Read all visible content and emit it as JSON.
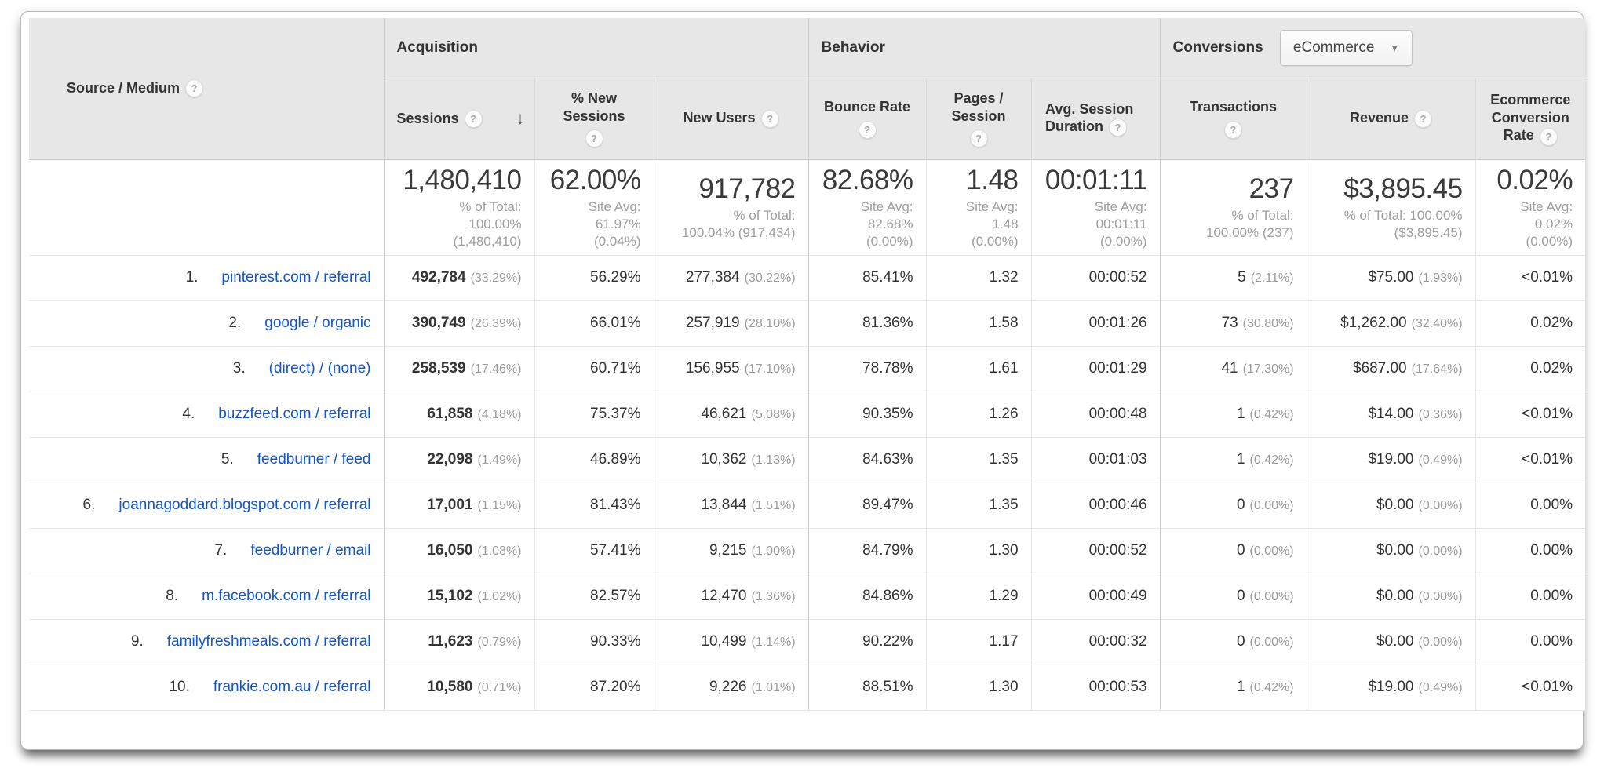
{
  "icons": {
    "help": "?",
    "sort_desc": "↓",
    "caret": "▼"
  },
  "colors": {
    "header_bg": "#e7e7e7",
    "link": "#1155cc",
    "sorted_col_bg": "#f5f5f5",
    "pct_text": "#9b9b9b"
  },
  "table": {
    "primary_column": {
      "label": "Source / Medium"
    },
    "groups": [
      {
        "label": "Acquisition"
      },
      {
        "label": "Behavior"
      },
      {
        "label": "Conversions",
        "dropdown_value": "eCommerce"
      }
    ],
    "columns": [
      {
        "label": "Sessions",
        "sorted": "desc"
      },
      {
        "label": "% New Sessions"
      },
      {
        "label": "New Users"
      },
      {
        "label": "Bounce Rate"
      },
      {
        "label": "Pages / Session"
      },
      {
        "label": "Avg. Session Duration"
      },
      {
        "label": "Transactions"
      },
      {
        "label": "Revenue"
      },
      {
        "label": "Ecommerce Conversion Rate"
      }
    ],
    "totals": [
      {
        "main": "1,480,410",
        "sub": "% of Total:\n100.00%\n(1,480,410)"
      },
      {
        "main": "62.00%",
        "sub": "Site Avg:\n61.97%\n(0.04%)"
      },
      {
        "main": "917,782",
        "sub": "% of Total:\n100.04% (917,434)"
      },
      {
        "main": "82.68%",
        "sub": "Site Avg:\n82.68%\n(0.00%)"
      },
      {
        "main": "1.48",
        "sub": "Site Avg:\n1.48\n(0.00%)"
      },
      {
        "main": "00:01:11",
        "sub": "Site Avg:\n00:01:11\n(0.00%)"
      },
      {
        "main": "237",
        "sub": "% of Total:\n100.00% (237)"
      },
      {
        "main": "$3,895.45",
        "sub": "% of Total: 100.00%\n($3,895.45)"
      },
      {
        "main": "0.02%",
        "sub": "Site Avg:\n0.02%\n(0.00%)"
      }
    ],
    "rows": [
      {
        "rank": "1.",
        "source": "pinterest.com / referral",
        "cells": [
          {
            "v": "492,784",
            "pct": "(33.29%)"
          },
          {
            "v": "56.29%"
          },
          {
            "v": "277,384",
            "pct": "(30.22%)"
          },
          {
            "v": "85.41%"
          },
          {
            "v": "1.32"
          },
          {
            "v": "00:00:52"
          },
          {
            "v": "5",
            "pct": "(2.11%)"
          },
          {
            "v": "$75.00",
            "pct": "(1.93%)"
          },
          {
            "v": "<0.01%"
          }
        ]
      },
      {
        "rank": "2.",
        "source": "google / organic",
        "cells": [
          {
            "v": "390,749",
            "pct": "(26.39%)"
          },
          {
            "v": "66.01%"
          },
          {
            "v": "257,919",
            "pct": "(28.10%)"
          },
          {
            "v": "81.36%"
          },
          {
            "v": "1.58"
          },
          {
            "v": "00:01:26"
          },
          {
            "v": "73",
            "pct": "(30.80%)"
          },
          {
            "v": "$1,262.00",
            "pct": "(32.40%)"
          },
          {
            "v": "0.02%"
          }
        ]
      },
      {
        "rank": "3.",
        "source": "(direct) / (none)",
        "cells": [
          {
            "v": "258,539",
            "pct": "(17.46%)"
          },
          {
            "v": "60.71%"
          },
          {
            "v": "156,955",
            "pct": "(17.10%)"
          },
          {
            "v": "78.78%"
          },
          {
            "v": "1.61"
          },
          {
            "v": "00:01:29"
          },
          {
            "v": "41",
            "pct": "(17.30%)"
          },
          {
            "v": "$687.00",
            "pct": "(17.64%)"
          },
          {
            "v": "0.02%"
          }
        ]
      },
      {
        "rank": "4.",
        "source": "buzzfeed.com / referral",
        "cells": [
          {
            "v": "61,858",
            "pct": "(4.18%)"
          },
          {
            "v": "75.37%"
          },
          {
            "v": "46,621",
            "pct": "(5.08%)"
          },
          {
            "v": "90.35%"
          },
          {
            "v": "1.26"
          },
          {
            "v": "00:00:48"
          },
          {
            "v": "1",
            "pct": "(0.42%)"
          },
          {
            "v": "$14.00",
            "pct": "(0.36%)"
          },
          {
            "v": "<0.01%"
          }
        ]
      },
      {
        "rank": "5.",
        "source": "feedburner / feed",
        "cells": [
          {
            "v": "22,098",
            "pct": "(1.49%)"
          },
          {
            "v": "46.89%"
          },
          {
            "v": "10,362",
            "pct": "(1.13%)"
          },
          {
            "v": "84.63%"
          },
          {
            "v": "1.35"
          },
          {
            "v": "00:01:03"
          },
          {
            "v": "1",
            "pct": "(0.42%)"
          },
          {
            "v": "$19.00",
            "pct": "(0.49%)"
          },
          {
            "v": "<0.01%"
          }
        ]
      },
      {
        "rank": "6.",
        "source": "joannagoddard.blogspot.com / referral",
        "cells": [
          {
            "v": "17,001",
            "pct": "(1.15%)"
          },
          {
            "v": "81.43%"
          },
          {
            "v": "13,844",
            "pct": "(1.51%)"
          },
          {
            "v": "89.47%"
          },
          {
            "v": "1.35"
          },
          {
            "v": "00:00:46"
          },
          {
            "v": "0",
            "pct": "(0.00%)"
          },
          {
            "v": "$0.00",
            "pct": "(0.00%)"
          },
          {
            "v": "0.00%"
          }
        ]
      },
      {
        "rank": "7.",
        "source": "feedburner / email",
        "cells": [
          {
            "v": "16,050",
            "pct": "(1.08%)"
          },
          {
            "v": "57.41%"
          },
          {
            "v": "9,215",
            "pct": "(1.00%)"
          },
          {
            "v": "84.79%"
          },
          {
            "v": "1.30"
          },
          {
            "v": "00:00:52"
          },
          {
            "v": "0",
            "pct": "(0.00%)"
          },
          {
            "v": "$0.00",
            "pct": "(0.00%)"
          },
          {
            "v": "0.00%"
          }
        ]
      },
      {
        "rank": "8.",
        "source": "m.facebook.com / referral",
        "cells": [
          {
            "v": "15,102",
            "pct": "(1.02%)"
          },
          {
            "v": "82.57%"
          },
          {
            "v": "12,470",
            "pct": "(1.36%)"
          },
          {
            "v": "84.86%"
          },
          {
            "v": "1.29"
          },
          {
            "v": "00:00:49"
          },
          {
            "v": "0",
            "pct": "(0.00%)"
          },
          {
            "v": "$0.00",
            "pct": "(0.00%)"
          },
          {
            "v": "0.00%"
          }
        ]
      },
      {
        "rank": "9.",
        "source": "familyfreshmeals.com / referral",
        "cells": [
          {
            "v": "11,623",
            "pct": "(0.79%)"
          },
          {
            "v": "90.33%"
          },
          {
            "v": "10,499",
            "pct": "(1.14%)"
          },
          {
            "v": "90.22%"
          },
          {
            "v": "1.17"
          },
          {
            "v": "00:00:32"
          },
          {
            "v": "0",
            "pct": "(0.00%)"
          },
          {
            "v": "$0.00",
            "pct": "(0.00%)"
          },
          {
            "v": "0.00%"
          }
        ]
      },
      {
        "rank": "10.",
        "source": "frankie.com.au / referral",
        "cells": [
          {
            "v": "10,580",
            "pct": "(0.71%)"
          },
          {
            "v": "87.20%"
          },
          {
            "v": "9,226",
            "pct": "(1.01%)"
          },
          {
            "v": "88.51%"
          },
          {
            "v": "1.30"
          },
          {
            "v": "00:00:53"
          },
          {
            "v": "1",
            "pct": "(0.42%)"
          },
          {
            "v": "$19.00",
            "pct": "(0.49%)"
          },
          {
            "v": "<0.01%"
          }
        ]
      }
    ]
  }
}
